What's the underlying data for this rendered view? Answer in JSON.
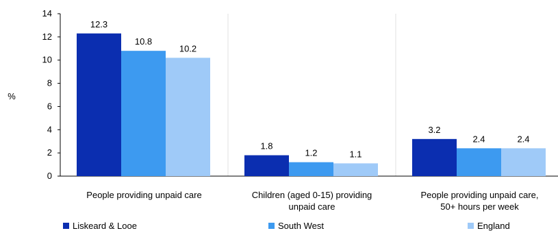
{
  "chart_data": {
    "type": "bar",
    "ylabel": "%",
    "ylim": [
      0,
      14
    ],
    "yticks": [
      0,
      2,
      4,
      6,
      8,
      10,
      12,
      14
    ],
    "categories": [
      [
        "People providing unpaid care"
      ],
      [
        "Children (aged 0-15) providing",
        "unpaid care"
      ],
      [
        "People providing unpaid care,",
        "50+ hours per week"
      ]
    ],
    "series": [
      {
        "name": "Liskeard & Looe",
        "color": "#0b2eb0",
        "values": [
          12.3,
          1.8,
          3.2
        ],
        "labels": [
          "12.3",
          "1.8",
          "3.2"
        ]
      },
      {
        "name": "South West",
        "color": "#3d9af0",
        "values": [
          10.8,
          1.2,
          2.4
        ],
        "labels": [
          "10.8",
          "1.2",
          "2.4"
        ]
      },
      {
        "name": "England",
        "color": "#9fcaf8",
        "values": [
          10.2,
          1.1,
          2.4
        ],
        "labels": [
          "10.2",
          "1.1",
          "2.4"
        ]
      }
    ],
    "grid": "vertical separators",
    "legend_position": "bottom"
  }
}
